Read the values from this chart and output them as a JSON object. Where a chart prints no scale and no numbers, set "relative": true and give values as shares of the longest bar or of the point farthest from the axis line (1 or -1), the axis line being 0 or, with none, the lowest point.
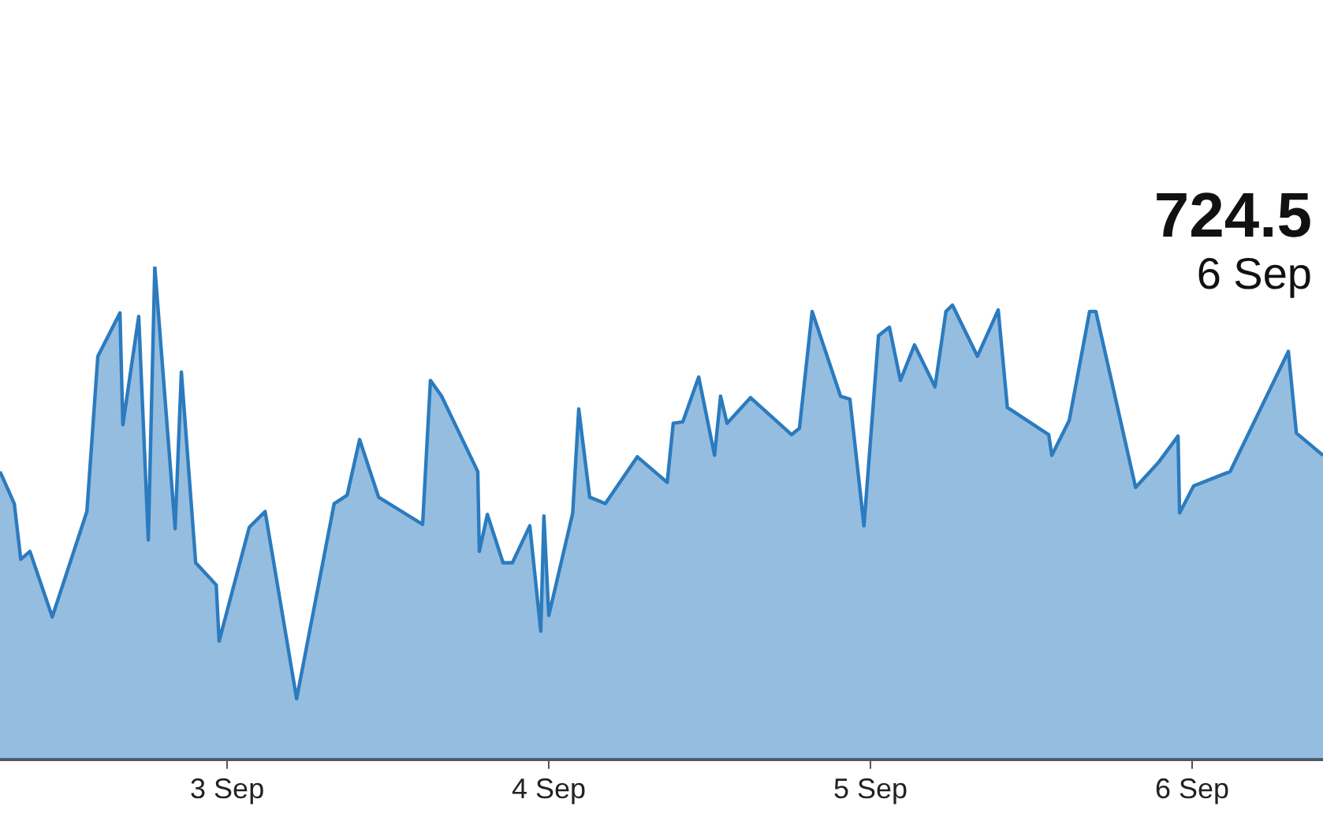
{
  "chart_data": {
    "type": "area",
    "relative": true,
    "x": [
      "--09-02T07:03",
      "--09-02T08:07",
      "--09-02T08:36",
      "--09-02T09:17",
      "--09-02T10:57",
      "--09-02T13:32",
      "--09-02T14:21",
      "--09-02T16:00",
      "--09-02T16:13",
      "--09-02T17:24",
      "--09-02T18:07",
      "--09-02T18:36",
      "--09-02T20:07",
      "--09-02T20:35",
      "--09-02T21:39",
      "--09-02T23:11",
      "--09-02T23:24",
      "--09-03T01:39",
      "--09-03T02:50",
      "--09-03T05:11",
      "--09-03T07:59",
      "--09-03T08:57",
      "--09-03T09:53",
      "--09-03T11:18",
      "--09-03T14:35",
      "--09-03T15:10",
      "--09-03T16:00",
      "--09-03T18:42",
      "--09-03T18:49",
      "--09-03T19:25",
      "--09-03T20:35",
      "--09-03T21:17",
      "--09-03T22:35",
      "--09-03T23:24",
      "--09-03T23:38",
      "--09-04T00:00",
      "--09-04T01:47",
      "--09-04T02:14",
      "--09-04T03:03",
      "--09-04T04:13",
      "--09-04T06:36",
      "--09-04T08:50",
      "--09-04T09:17",
      "--09-04T10:00",
      "--09-04T11:11",
      "--09-04T12:22",
      "--09-04T12:49",
      "--09-04T13:18",
      "--09-04T15:03",
      "--09-04T18:07",
      "--09-04T18:42",
      "--09-04T19:39",
      "--09-04T21:46",
      "--09-04T22:28",
      "--09-04T23:31",
      "--09-05T00:36",
      "--09-05T01:25",
      "--09-05T02:14",
      "--09-05T03:17",
      "--09-05T04:49",
      "--09-05T05:38",
      "--09-05T06:07",
      "--09-05T07:59",
      "--09-05T09:32",
      "--09-05T10:13",
      "--09-05T13:18",
      "--09-05T13:32",
      "--09-05T14:50",
      "--09-05T16:21",
      "--09-05T16:49",
      "--09-05T19:47",
      "--09-05T21:32",
      "--09-05T22:57",
      "--09-05T23:04",
      "--09-06T00:07",
      "--09-06T02:50",
      "--09-06T07:11",
      "--09-06T07:47",
      "--09-06T09:46"
    ],
    "series": [
      {
        "color": "#2b7bbf",
        "values": [
          0.584,
          0.519,
          0.406,
          0.422,
          0.289,
          0.503,
          0.818,
          0.906,
          0.679,
          0.899,
          0.445,
          1,
          0.468,
          0.786,
          0.399,
          0.354,
          0.24,
          0.471,
          0.503,
          0.123,
          0.519,
          0.536,
          0.649,
          0.532,
          0.477,
          0.769,
          0.737,
          0.584,
          0.422,
          0.497,
          0.399,
          0.399,
          0.474,
          0.26,
          0.494,
          0.292,
          0.5,
          0.711,
          0.532,
          0.519,
          0.614,
          0.562,
          0.682,
          0.685,
          0.776,
          0.617,
          0.737,
          0.682,
          0.734,
          0.659,
          0.672,
          0.909,
          0.737,
          0.731,
          0.474,
          0.86,
          0.877,
          0.769,
          0.841,
          0.756,
          0.909,
          0.922,
          0.818,
          0.912,
          0.714,
          0.659,
          0.617,
          0.688,
          0.909,
          0.909,
          0.552,
          0.604,
          0.656,
          0.5,
          0.555,
          0.584,
          0.828,
          0.662,
          0.617
        ]
      }
    ],
    "xlim": [
      "--09-02T07:03",
      "--09-06T09:46"
    ],
    "xticks": [
      {
        "value": "--09-03",
        "label": "3 Sep"
      },
      {
        "value": "--09-04",
        "label": "4 Sep"
      },
      {
        "value": "--09-05",
        "label": "5 Sep"
      },
      {
        "value": "--09-06",
        "label": "6 Sep"
      }
    ],
    "annotations": [
      "724.5",
      "6 Sep"
    ]
  }
}
